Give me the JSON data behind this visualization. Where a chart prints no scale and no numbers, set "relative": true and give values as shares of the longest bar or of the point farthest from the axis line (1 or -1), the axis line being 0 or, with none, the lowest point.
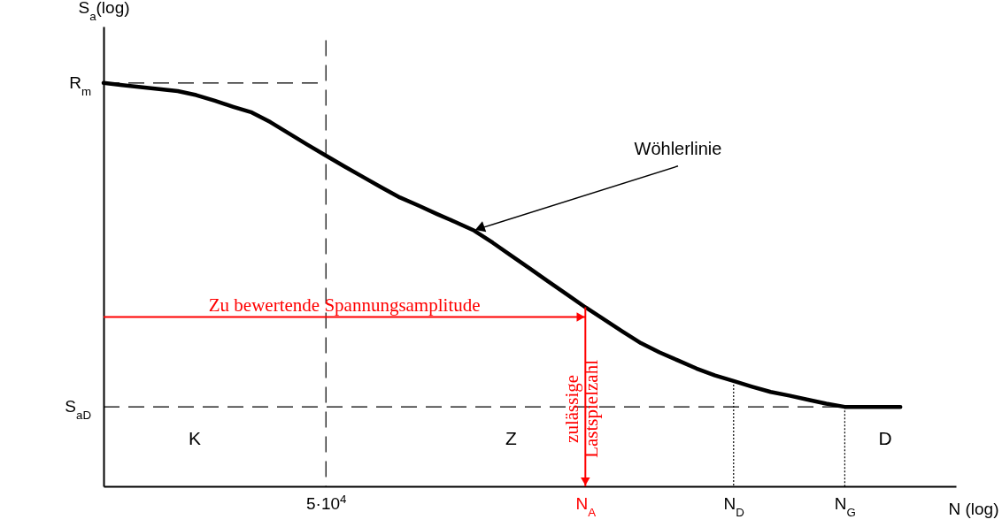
{
  "chart_data": {
    "type": "line",
    "relative": true,
    "xlabel": "N (log)",
    "ylabel": "S$_{a}$(log)",
    "categories": [
      null,
      null,
      null,
      null,
      null,
      null,
      null,
      null,
      null,
      null,
      null,
      null,
      "5·10$^{4}$",
      null,
      null,
      null,
      null,
      null,
      null,
      null,
      null,
      null,
      null,
      null,
      null,
      null,
      "N$_{A}$",
      null,
      null,
      null,
      null,
      null,
      null,
      null,
      "N$_{D}$",
      null,
      null,
      null,
      null,
      null,
      "N$_{G}$",
      null,
      null,
      null,
      null,
      null,
      null
    ],
    "series": [
      {
        "color": "#000000",
        "values": [
          1,
          0.995,
          0.99,
          0.985,
          0.98,
          0.97,
          0.956,
          0.941,
          0.927,
          0.903,
          0.875,
          0.847,
          0.82,
          0.793,
          0.767,
          0.741,
          0.716,
          0.696,
          0.675,
          0.655,
          0.634,
          0.604,
          0.572,
          0.54,
          0.508,
          0.476,
          0.444,
          0.414,
          0.384,
          0.355,
          0.332,
          0.312,
          0.292,
          0.275,
          0.261,
          0.247,
          0.234,
          0.225,
          0.215,
          0.205,
          0.197,
          0.197,
          0.197,
          0.197,
          null,
          null,
          null
        ]
      }
    ],
    "line_style": "solid",
    "ref_lines": [
      {
        "axis": "y",
        "value": 1,
        "label": "R$_{m}$",
        "line_style": "dashed",
        "color": "#000000"
      },
      {
        "axis": "y",
        "value": 0.197,
        "label": "S$_{aD}$",
        "line_style": "dashed",
        "color": "#000000"
      },
      {
        "axis": "x",
        "value": "5·10$^{4}$",
        "label": null,
        "line_style": "dashed",
        "color": "#000000"
      },
      {
        "axis": "x",
        "value": "N$_{D}$",
        "label": null,
        "line_style": "dotted",
        "color": "#000000"
      },
      {
        "axis": "x",
        "value": "N$_{G}$",
        "label": null,
        "line_style": "dotted",
        "color": "#000000"
      },
      {
        "axis": "y",
        "value": 0.42,
        "label": "Zu bewertende Spannungsamplitude",
        "line_style": "solid",
        "color": "#ff0000"
      },
      {
        "axis": "x",
        "value": "N$_{A}$",
        "label": "zulässige Lastspielzahl",
        "line_style": "solid",
        "color": "#ff0000"
      }
    ],
    "annotations": [
      "Wöhlerlinie",
      "K",
      "Z",
      "D"
    ]
  }
}
